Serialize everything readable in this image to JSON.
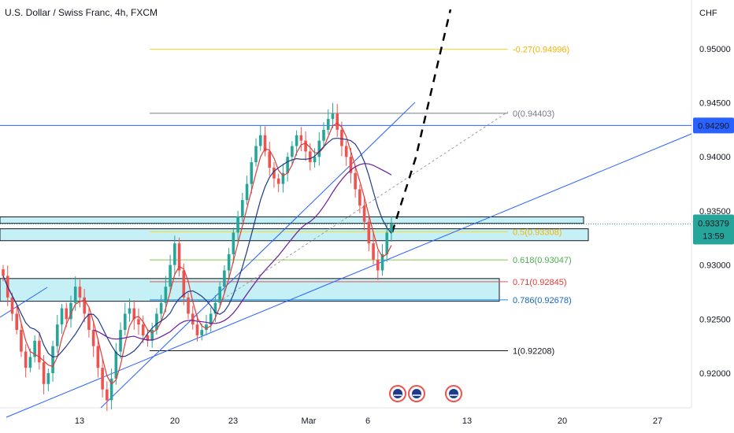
{
  "title": "U.S. Dollar / Swiss Franc, 4h, FXCM",
  "currency": "CHF",
  "price_tag": {
    "current": "0.93379",
    "countdown": "13:59",
    "color": "#26a69a"
  },
  "resistance_tag": {
    "value": "0.94290",
    "color": "#2962ff"
  },
  "colors": {
    "up": "#26a69a",
    "down": "#ef5350",
    "wick_up": "#26a69a",
    "wick_down": "#ef5350",
    "ma_fast": "#e53935",
    "ma_mid": "#1e3a8a",
    "ma_slow": "#6a1b9a",
    "trend": "#2962ff",
    "zone_fill": "#b2ebf2",
    "zone_stroke": "#131722"
  },
  "chart_data": {
    "type": "line",
    "subtype": "candlestick",
    "x_ticks": [
      "13",
      "20",
      "23",
      "Mar",
      "6",
      "13",
      "20",
      "27"
    ],
    "y_ticks": [
      "0.95000",
      "0.94500",
      "0.94000",
      "0.93500",
      "0.93000",
      "0.92500",
      "0.92000"
    ],
    "ylim": [
      0.9168,
      0.9545
    ],
    "fib_levels": [
      {
        "label": "-0.27(0.94996)",
        "value": 0.94996,
        "color": "#f9d71c",
        "text_color": "#f5b400"
      },
      {
        "label": "0(0.94403)",
        "value": 0.94403,
        "color": "#787b86",
        "text_color": "#787b86"
      },
      {
        "label": "0.5(0.93308)",
        "value": 0.93308,
        "color": "#f9d71c",
        "text_color": "#f5b400"
      },
      {
        "label": "0.618(0.93047)",
        "value": 0.93047,
        "color": "#8bc34a",
        "text_color": "#4caf50"
      },
      {
        "label": "0.71(0.92845)",
        "value": 0.92845,
        "color": "#ef5350",
        "text_color": "#e53935"
      },
      {
        "label": "0.786(0.92678)",
        "value": 0.92678,
        "color": "#1e88e5",
        "text_color": "#1565c0"
      },
      {
        "label": "1(0.92208)",
        "value": 0.92208,
        "color": "#131722",
        "text_color": "#131722"
      }
    ],
    "resistance": 0.9429,
    "current_price": 0.93379,
    "zones": [
      {
        "top": 0.93445,
        "bottom": 0.93385
      },
      {
        "top": 0.93335,
        "bottom": 0.93225
      },
      {
        "top": 0.92875,
        "bottom": 0.92665
      }
    ],
    "candles_close": [
      0.929,
      0.927,
      0.9255,
      0.924,
      0.922,
      0.9205,
      0.9215,
      0.923,
      0.921,
      0.919,
      0.92,
      0.9225,
      0.9245,
      0.926,
      0.925,
      0.9265,
      0.928,
      0.927,
      0.9255,
      0.924,
      0.9225,
      0.9205,
      0.9185,
      0.9175,
      0.9195,
      0.922,
      0.924,
      0.9255,
      0.926,
      0.925,
      0.9245,
      0.9235,
      0.923,
      0.924,
      0.9255,
      0.9265,
      0.928,
      0.93,
      0.932,
      0.9295,
      0.927,
      0.9255,
      0.9245,
      0.9235,
      0.924,
      0.9245,
      0.9255,
      0.9265,
      0.928,
      0.9295,
      0.931,
      0.933,
      0.9345,
      0.936,
      0.9375,
      0.9395,
      0.941,
      0.942,
      0.9405,
      0.939,
      0.938,
      0.9375,
      0.9385,
      0.94,
      0.941,
      0.942,
      0.9415,
      0.9405,
      0.9395,
      0.94,
      0.9415,
      0.9425,
      0.9435,
      0.944,
      0.9425,
      0.941,
      0.94,
      0.9385,
      0.937,
      0.9355,
      0.934,
      0.932,
      0.9305,
      0.9295,
      0.931,
      0.933,
      0.9338
    ]
  }
}
